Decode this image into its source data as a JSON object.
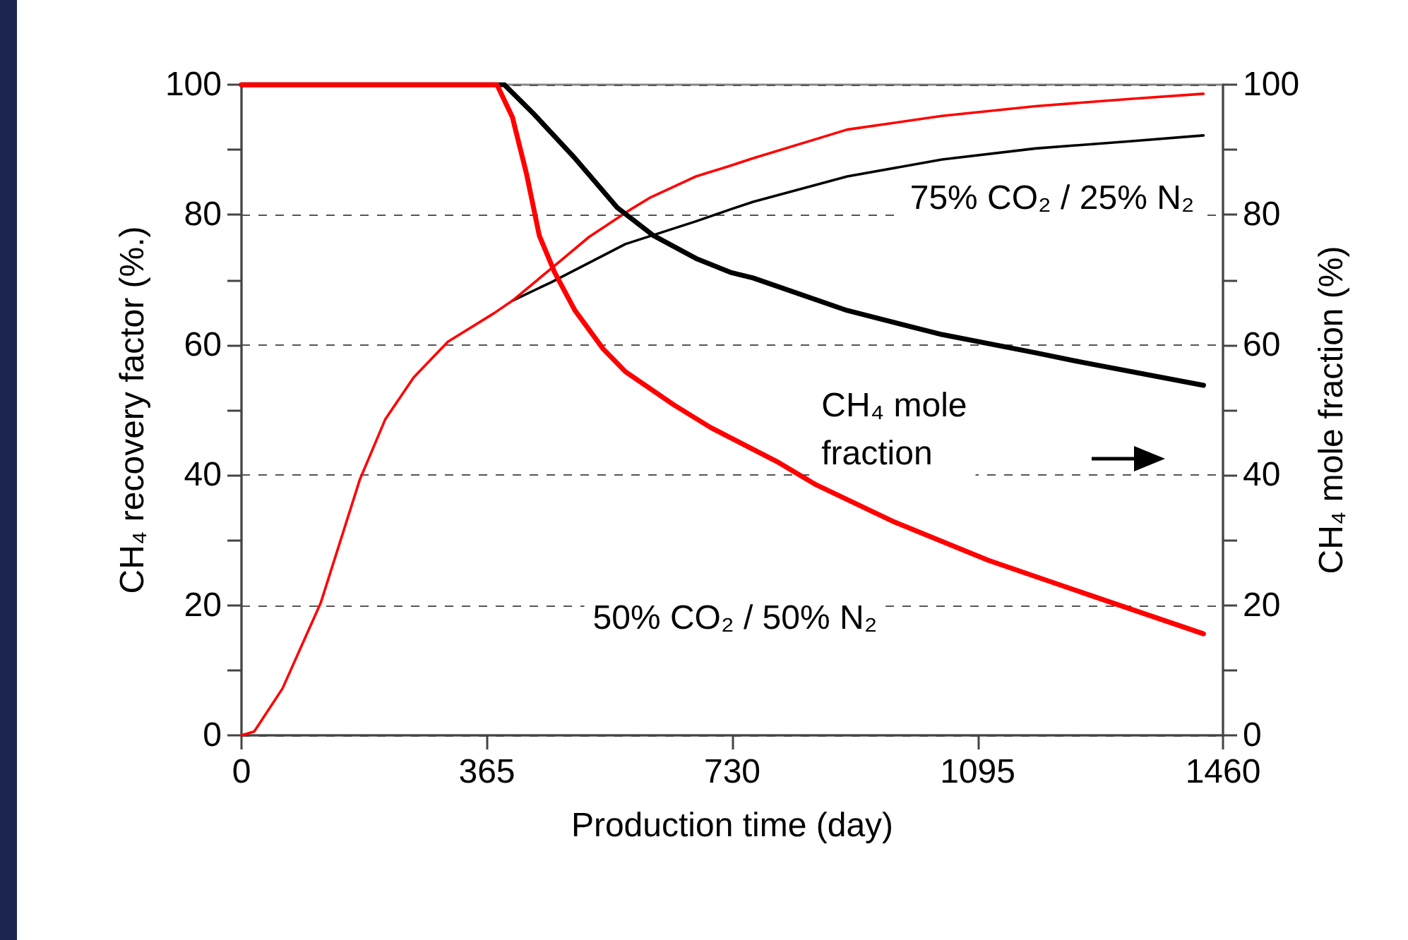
{
  "chart_data": {
    "type": "line",
    "xlabel": "Production time (day)",
    "ylabel": "CH₄ recovery factor (%.)",
    "y2label": "CH₄ mole fraction (%)",
    "xlim": [
      0,
      1460
    ],
    "xticks": [
      0,
      365,
      730,
      1095,
      1460
    ],
    "ylim": [
      0,
      100
    ],
    "yticks": [
      0,
      {
        "value": 10,
        "label": null
      },
      20,
      {
        "value": 30,
        "label": null
      },
      40,
      {
        "value": 50,
        "label": null
      },
      60,
      {
        "value": 70,
        "label": null
      },
      80,
      {
        "value": 90,
        "label": null
      },
      100
    ],
    "y2lim": [
      0,
      100
    ],
    "y2ticks": [
      0,
      {
        "value": 10,
        "label": null
      },
      20,
      {
        "value": 30,
        "label": null
      },
      40,
      {
        "value": 50,
        "label": null
      },
      60,
      {
        "value": 70,
        "label": null
      },
      80,
      {
        "value": 90,
        "label": null
      },
      100
    ],
    "grid": "y",
    "marker": "none",
    "line_style": "solid",
    "series": [
      {
        "color": "#000000",
        "x": [
          403,
          460,
          571,
          676,
          729,
          761,
          901,
          1042,
          1181,
          1321,
          1431
        ],
        "values": [
          66.8,
          69.6,
          75.5,
          79,
          80.9,
          82,
          85.9,
          88.5,
          90.2,
          91.3,
          92.2
        ]
      },
      {
        "color": "#ff0000",
        "x": [
          0,
          19,
          61,
          118,
          176,
          214,
          256,
          307,
          376,
          403,
          466,
          517,
          580,
          607,
          676,
          729,
          761,
          901,
          1042,
          1181,
          1321,
          1431
        ],
        "values": [
          0,
          0.6,
          7.2,
          20.4,
          39.3,
          48.6,
          55,
          60.5,
          64.9,
          66.8,
          72.2,
          76.6,
          80.9,
          82.6,
          85.9,
          87.6,
          88.7,
          93.1,
          95.2,
          96.7,
          97.8,
          98.6
        ]
      },
      {
        "color": "#000000",
        "axis": "y2",
        "x": [
          0,
          391,
          433,
          496,
          559,
          613,
          676,
          729,
          761,
          901,
          1042,
          1181,
          1252,
          1431
        ],
        "values": [
          100,
          100,
          95.7,
          88.7,
          81.1,
          76.8,
          73.3,
          71.1,
          70.3,
          65.3,
          61.6,
          58.8,
          57.3,
          53.8
        ]
      },
      {
        "color": "#ff0000",
        "axis": "y2",
        "x": [
          0,
          380,
          403,
          424,
          443,
          466,
          496,
          538,
          571,
          643,
          698,
          796,
          853,
          971,
          1111,
          1252,
          1431
        ],
        "values": [
          100,
          100,
          95,
          86.3,
          76.8,
          71.1,
          65.3,
          59.4,
          55.9,
          50.8,
          47.3,
          42.1,
          38.6,
          32.8,
          26.9,
          21.9,
          15.6
        ]
      }
    ],
    "annotations": [
      "75% CO₂ / 25% N₂",
      "CH₄ mole\nfraction",
      "50% CO₂ / 50% N₂"
    ]
  }
}
